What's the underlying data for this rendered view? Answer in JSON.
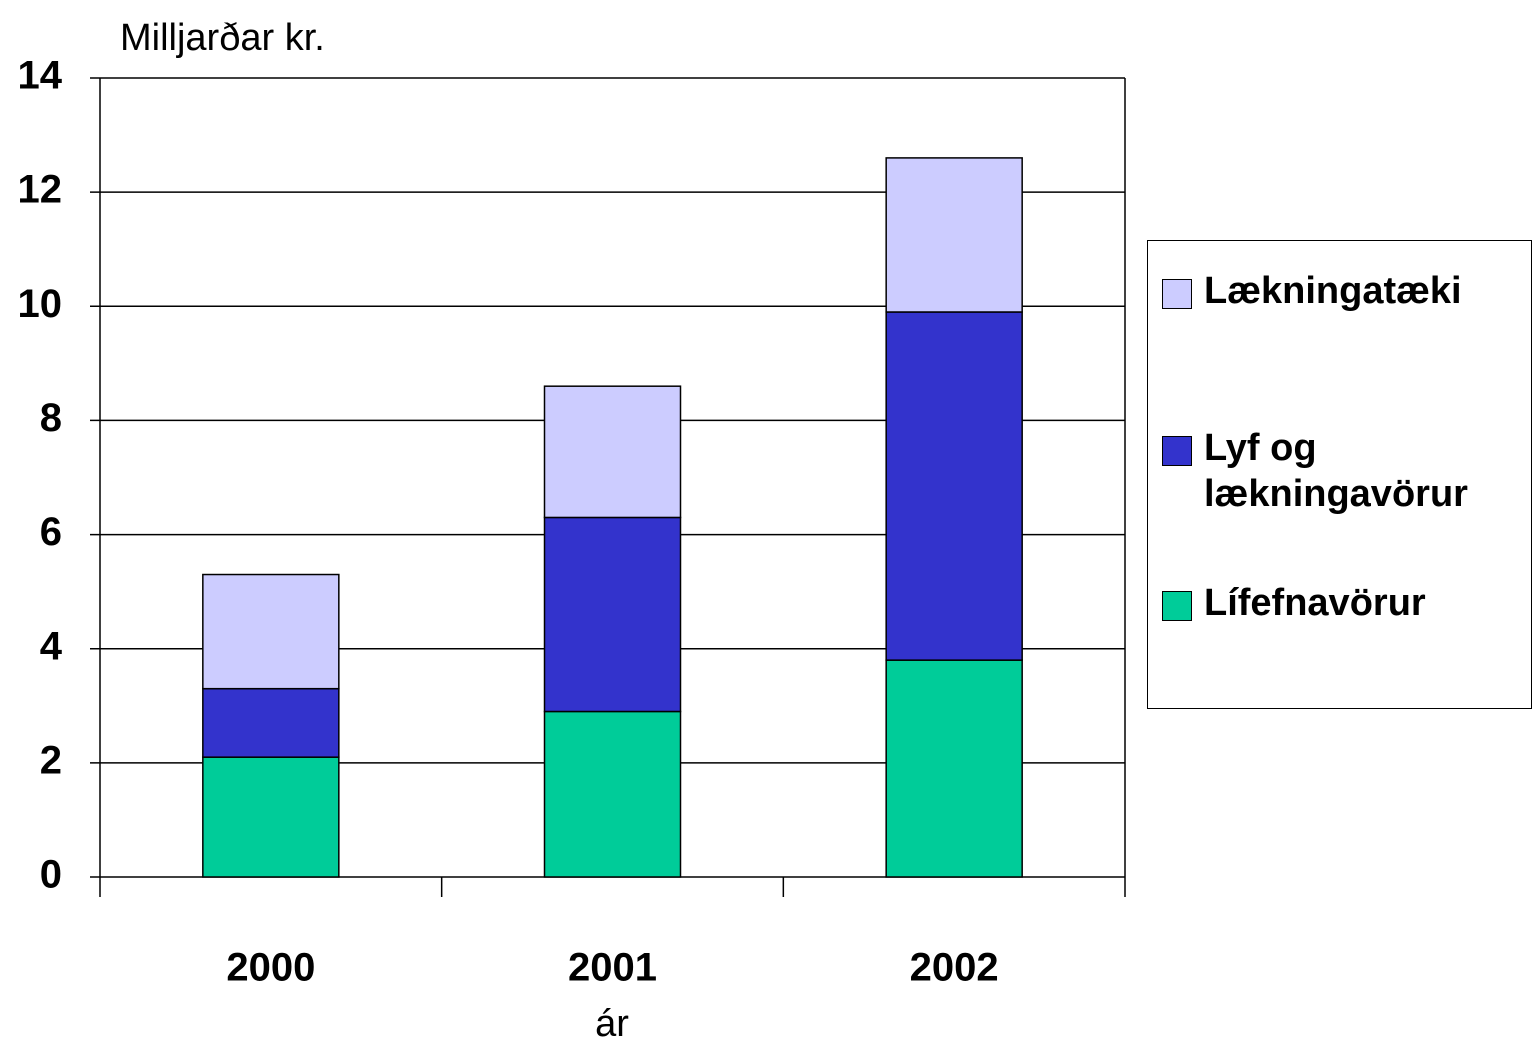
{
  "chart_data": {
    "type": "stacked_bar",
    "ylabel": "Milljarðar kr.",
    "xlabel": "ár",
    "categories": [
      "2000",
      "2001",
      "2002"
    ],
    "series": [
      {
        "name": "Lífefnavörur",
        "color": "#00cc99",
        "values": [
          2.1,
          2.9,
          3.8
        ]
      },
      {
        "name": "Lyf og lækningavörur",
        "color": "#3333cc",
        "values": [
          1.2,
          3.4,
          6.1
        ]
      },
      {
        "name": "Lækningatæki",
        "color": "#ccccff",
        "values": [
          2.0,
          2.3,
          2.7
        ]
      }
    ],
    "ylim": [
      0,
      14
    ],
    "yticks": [
      0,
      2,
      4,
      6,
      8,
      10,
      12,
      14
    ],
    "grid": true,
    "legend": "right"
  }
}
